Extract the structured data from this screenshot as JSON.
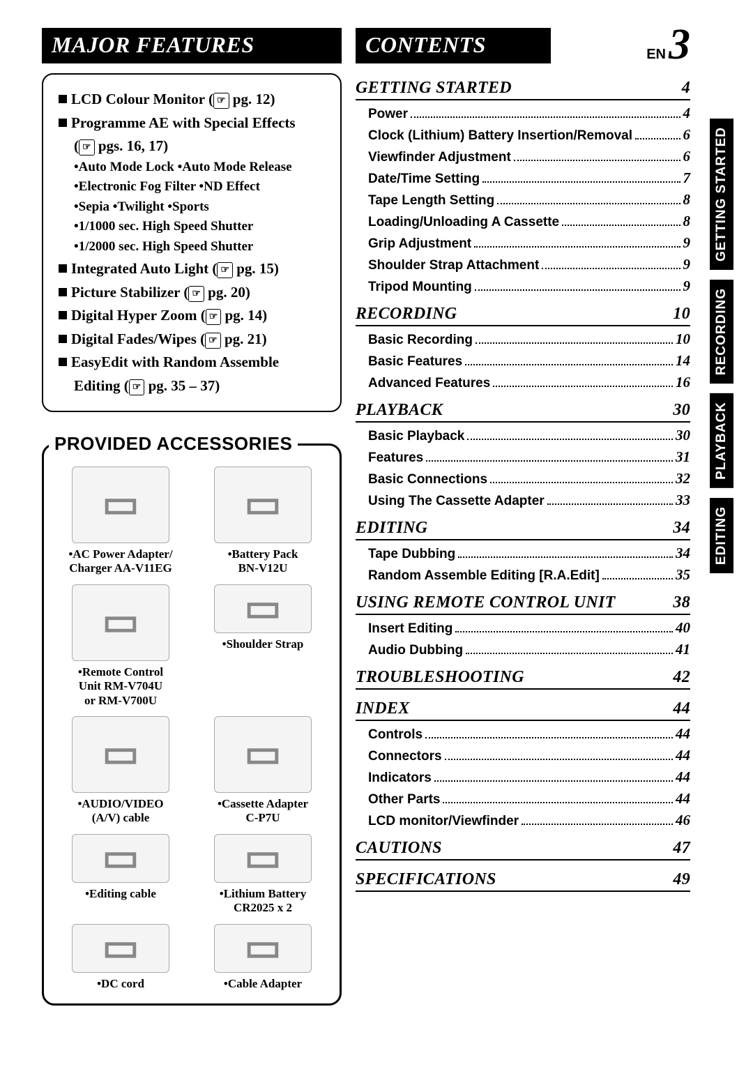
{
  "page": {
    "lang": "EN",
    "number": "3"
  },
  "headers": {
    "major_features": "MAJOR FEATURES",
    "contents": "CONTENTS",
    "provided_accessories": "PROVIDED ACCESSORIES"
  },
  "pg_icon": "☞",
  "features": [
    {
      "type": "main",
      "text": "LCD Colour Monitor (",
      "pg": "pg. 12)"
    },
    {
      "type": "main",
      "text": "Programme AE with Special Effects"
    },
    {
      "type": "pgline",
      "pg": "pgs. 16, 17)"
    },
    {
      "type": "sub",
      "text": "•Auto Mode Lock  •Auto Mode Release"
    },
    {
      "type": "sub",
      "text": "•Electronic Fog Filter  •ND Effect"
    },
    {
      "type": "sub",
      "text": "•Sepia  •Twilight  •Sports"
    },
    {
      "type": "sub",
      "text": "•1/1000 sec. High Speed Shutter"
    },
    {
      "type": "sub",
      "text": "•1/2000 sec. High Speed Shutter"
    },
    {
      "type": "main",
      "text": "Integrated Auto Light (",
      "pg": "pg. 15)"
    },
    {
      "type": "main",
      "text": "Picture Stabilizer (",
      "pg": "pg. 20)"
    },
    {
      "type": "main",
      "text": "Digital Hyper Zoom (",
      "pg": "pg. 14)"
    },
    {
      "type": "main",
      "text": "Digital Fades/Wipes (",
      "pg": "pg. 21)"
    },
    {
      "type": "main",
      "text": "EasyEdit with Random Assemble"
    },
    {
      "type": "cont",
      "text": "Editing (",
      "pg": "pg. 35 – 37)"
    }
  ],
  "accessories": [
    {
      "label": "•AC Power Adapter/\nCharger AA-V11EG"
    },
    {
      "label": "•Battery Pack\nBN-V12U"
    },
    {
      "label": "•Remote Control\nUnit RM-V704U\nor RM-V700U"
    },
    {
      "label": "•Shoulder Strap",
      "short": true
    },
    {
      "label": "•AUDIO/VIDEO\n(A/V) cable"
    },
    {
      "label": "•Cassette Adapter\nC-P7U"
    },
    {
      "label": "•Editing cable",
      "short": true
    },
    {
      "label": "•Lithium Battery\nCR2025 x 2",
      "short": true
    },
    {
      "label": "•DC cord",
      "short": true
    },
    {
      "label": "•Cable Adapter",
      "short": true
    }
  ],
  "toc": [
    {
      "section": "GETTING STARTED",
      "page": "4",
      "items": [
        {
          "t": "Power",
          "p": "4"
        },
        {
          "t": "Clock (Lithium) Battery Insertion/Removal",
          "p": "6"
        },
        {
          "t": "Viewfinder Adjustment",
          "p": "6"
        },
        {
          "t": "Date/Time Setting",
          "p": "7"
        },
        {
          "t": "Tape Length Setting",
          "p": "8"
        },
        {
          "t": "Loading/Unloading A Cassette",
          "p": "8"
        },
        {
          "t": "Grip Adjustment",
          "p": "9"
        },
        {
          "t": "Shoulder Strap Attachment",
          "p": "9"
        },
        {
          "t": "Tripod Mounting",
          "p": "9"
        }
      ]
    },
    {
      "section": "RECORDING",
      "page": "10",
      "items": [
        {
          "t": "Basic Recording",
          "p": "10"
        },
        {
          "t": "Basic Features",
          "p": "14"
        },
        {
          "t": "Advanced Features",
          "p": "16"
        }
      ]
    },
    {
      "section": "PLAYBACK",
      "page": "30",
      "items": [
        {
          "t": "Basic Playback",
          "p": "30"
        },
        {
          "t": "Features",
          "p": "31"
        },
        {
          "t": "Basic Connections",
          "p": "32"
        },
        {
          "t": "Using The Cassette Adapter",
          "p": "33"
        }
      ]
    },
    {
      "section": "EDITING",
      "page": "34",
      "items": [
        {
          "t": "Tape Dubbing",
          "p": "34"
        },
        {
          "t": "Random Assemble Editing [R.A.Edit]",
          "p": "35"
        }
      ]
    },
    {
      "section": "USING REMOTE CONTROL UNIT",
      "page": "38",
      "items": [
        {
          "t": "Insert Editing",
          "p": "40"
        },
        {
          "t": "Audio Dubbing",
          "p": "41"
        }
      ]
    },
    {
      "section": "TROUBLESHOOTING",
      "page": "42",
      "items": []
    },
    {
      "section": "INDEX",
      "page": "44",
      "items": [
        {
          "t": "Controls",
          "p": "44"
        },
        {
          "t": "Connectors",
          "p": "44"
        },
        {
          "t": "Indicators",
          "p": "44"
        },
        {
          "t": "Other Parts",
          "p": "44"
        },
        {
          "t": "LCD monitor/Viewfinder",
          "p": "46"
        }
      ]
    },
    {
      "section": "CAUTIONS",
      "page": "47",
      "items": []
    },
    {
      "section": "SPECIFICATIONS",
      "page": "49",
      "items": []
    }
  ],
  "tabs": [
    "GETTING STARTED",
    "RECORDING",
    "PLAYBACK",
    "EDITING"
  ],
  "colors": {
    "black": "#000000",
    "white": "#ffffff",
    "placeholder": "#888888"
  }
}
